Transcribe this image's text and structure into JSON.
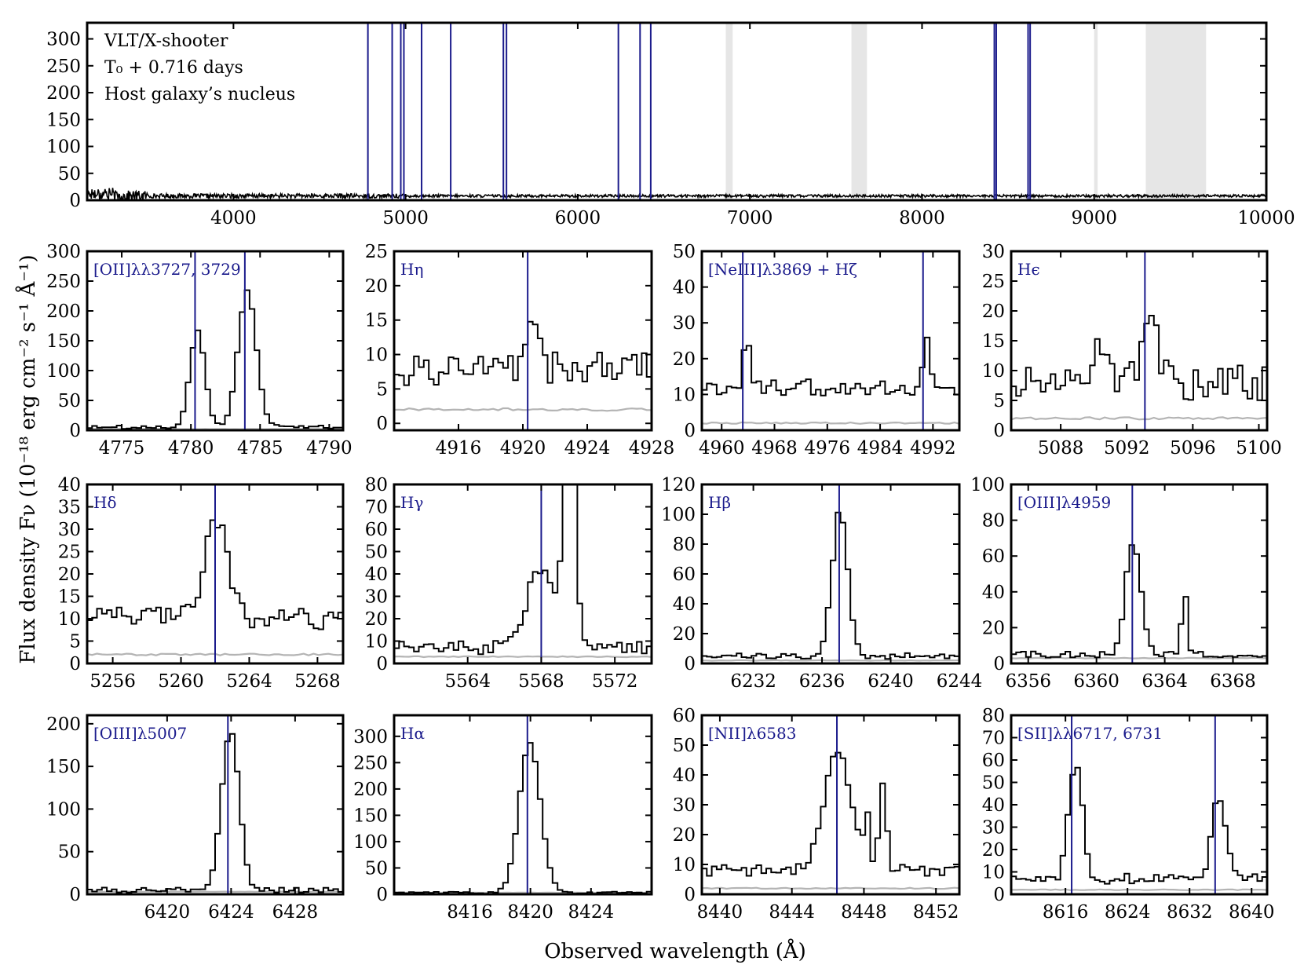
{
  "figure": {
    "ylabel": "Flux density Fν (10⁻¹⁸ erg cm⁻² s⁻¹ Å⁻¹)",
    "xlabel": "Observed wavelength (Å)"
  },
  "colors": {
    "spectrum": "#000000",
    "error": "#b4b4b4",
    "line_marker": "#1b1b8c",
    "telluric": "#e6e6e6",
    "label": "#1b1b8c"
  },
  "chart_data": [
    {
      "type": "line",
      "panel": "overview",
      "annotations": [
        "VLT/X-shooter",
        "T₀ + 0.716 days",
        "Host galaxy’s nucleus"
      ],
      "xlim": [
        3150,
        10000
      ],
      "ylim": [
        0,
        330
      ],
      "xticks": [
        4000,
        5000,
        6000,
        7000,
        8000,
        9000,
        10000
      ],
      "yticks": [
        0,
        50,
        100,
        150,
        200,
        250,
        300
      ],
      "continuum_level": 8,
      "line_markers": [
        4781,
        4922,
        4972,
        4990,
        5093,
        5262,
        5568,
        5586,
        6236,
        6362,
        6424,
        8420,
        8431,
        8616,
        8628
      ],
      "telluric_bands": [
        [
          6860,
          6900
        ],
        [
          7590,
          7680
        ],
        [
          9000,
          9020
        ],
        [
          9300,
          9650
        ]
      ]
    },
    {
      "type": "line",
      "title": "[OII]λλ3727, 3729",
      "xlim": [
        4772.5,
        4791
      ],
      "ylim": [
        0,
        300
      ],
      "xticks": [
        4775,
        4780,
        4785,
        4790
      ],
      "yticks": [
        0,
        50,
        100,
        150,
        200,
        250,
        300
      ],
      "markers": [
        4780.3,
        4783.9
      ],
      "components": [
        [
          4780.3,
          160,
          0.55
        ],
        [
          4783.9,
          230,
          0.65
        ]
      ],
      "continuum": 5,
      "noise": 3,
      "errlevel": 2
    },
    {
      "type": "line",
      "title": "Hη",
      "xlim": [
        4912,
        4928
      ],
      "ylim": [
        -1,
        25
      ],
      "xticks": [
        4916,
        4920,
        4924,
        4928
      ],
      "yticks": [
        0,
        5,
        10,
        15,
        20,
        25
      ],
      "markers": [
        4920.3
      ],
      "components": [
        [
          4920.5,
          9,
          0.35
        ]
      ],
      "continuum": 8,
      "noise": 2.5,
      "errlevel": 2
    },
    {
      "type": "line",
      "title": "[NeIII]λ3869 + Hζ",
      "xlim": [
        4957,
        4996
      ],
      "ylim": [
        0,
        50
      ],
      "xticks": [
        4960,
        4968,
        4976,
        4984,
        4992
      ],
      "yticks": [
        0,
        10,
        20,
        30,
        40,
        50
      ],
      "markers": [
        4963.2,
        4990.5
      ],
      "components": [
        [
          4963.5,
          14,
          0.5
        ],
        [
          4990.5,
          13,
          0.5
        ],
        [
          4980,
          30,
          0.12
        ]
      ],
      "continuum": 12,
      "noise": 2.5,
      "errlevel": 2
    },
    {
      "type": "line",
      "title": "Hϵ",
      "xlim": [
        5085,
        5100.5
      ],
      "ylim": [
        0,
        30
      ],
      "xticks": [
        5088,
        5092,
        5096,
        5100
      ],
      "yticks": [
        0,
        5,
        10,
        15,
        20,
        25,
        30
      ],
      "markers": [
        5093.1
      ],
      "components": [
        [
          5093.2,
          13,
          0.45
        ],
        [
          5090.2,
          5,
          0.4
        ]
      ],
      "continuum": 8,
      "noise": 3,
      "errlevel": 2
    },
    {
      "type": "line",
      "title": "Hδ",
      "xlim": [
        5254.5,
        5269.5
      ],
      "ylim": [
        0,
        40
      ],
      "xticks": [
        5256,
        5260,
        5264,
        5268
      ],
      "yticks": [
        0,
        5,
        10,
        15,
        20,
        25,
        30,
        35,
        40
      ],
      "markers": [
        5262
      ],
      "components": [
        [
          5261.9,
          22,
          0.65
        ]
      ],
      "continuum": 10,
      "noise": 2.5,
      "errlevel": 2
    },
    {
      "type": "line",
      "title": "Hγ",
      "xlim": [
        5560,
        5574
      ],
      "ylim": [
        0,
        80
      ],
      "xticks": [
        5564,
        5568,
        5572
      ],
      "yticks": [
        0,
        10,
        20,
        30,
        40,
        50,
        60,
        70,
        80
      ],
      "markers": [
        5568
      ],
      "components": [
        [
          5567.8,
          36,
          0.7
        ],
        [
          5569.4,
          120,
          0.3
        ]
      ],
      "continuum": 7,
      "noise": 3,
      "errlevel": 3
    },
    {
      "type": "line",
      "title": "Hβ",
      "xlim": [
        6229,
        6244
      ],
      "ylim": [
        0,
        120
      ],
      "xticks": [
        6232,
        6236,
        6240,
        6244
      ],
      "yticks": [
        0,
        20,
        40,
        60,
        80,
        100,
        120
      ],
      "markers": [
        6237
      ],
      "components": [
        [
          6236.9,
          98,
          0.45
        ]
      ],
      "continuum": 5,
      "noise": 2,
      "errlevel": 2
    },
    {
      "type": "line",
      "title": "[OIII]λ4959",
      "xlim": [
        6355,
        6370
      ],
      "ylim": [
        0,
        100
      ],
      "xticks": [
        6356,
        6360,
        6364,
        6368
      ],
      "yticks": [
        0,
        20,
        40,
        60,
        80,
        100
      ],
      "markers": [
        6362.1
      ],
      "components": [
        [
          6362,
          62,
          0.45
        ],
        [
          6365,
          38,
          0.15
        ]
      ],
      "continuum": 5,
      "noise": 2,
      "errlevel": 3
    },
    {
      "type": "line",
      "title": "[OIII]λ5007",
      "xlim": [
        6415,
        6431
      ],
      "ylim": [
        0,
        210
      ],
      "xticks": [
        6420,
        6424,
        6428
      ],
      "yticks": [
        0,
        50,
        100,
        150,
        200
      ],
      "markers": [
        6423.8
      ],
      "components": [
        [
          6423.8,
          185,
          0.55
        ]
      ],
      "continuum": 5,
      "noise": 3,
      "errlevel": 3
    },
    {
      "type": "line",
      "title": "Hα",
      "xlim": [
        8411,
        8428
      ],
      "ylim": [
        0,
        340
      ],
      "xticks": [
        8416,
        8420,
        8424
      ],
      "yticks": [
        0,
        50,
        100,
        150,
        200,
        250,
        300
      ],
      "markers": [
        8419.8
      ],
      "components": [
        [
          8419.8,
          285,
          0.7
        ]
      ],
      "continuum": 3,
      "noise": 2,
      "errlevel": 3
    },
    {
      "type": "line",
      "title": "[NII]λ6583",
      "xlim": [
        8439,
        8453.3
      ],
      "ylim": [
        0,
        60
      ],
      "xticks": [
        8440,
        8444,
        8448,
        8452
      ],
      "yticks": [
        0,
        10,
        20,
        30,
        40,
        50,
        60
      ],
      "markers": [
        8446.5
      ],
      "components": [
        [
          8446.4,
          40,
          0.75
        ],
        [
          8448,
          22,
          0.12
        ],
        [
          8448.9,
          30,
          0.2
        ]
      ],
      "continuum": 8,
      "noise": 2,
      "errlevel": 2
    },
    {
      "type": "line",
      "title": "[SII]λλ6717, 6731",
      "xlim": [
        8609,
        8642
      ],
      "ylim": [
        0,
        80
      ],
      "xticks": [
        8616,
        8624,
        8632,
        8640
      ],
      "yticks": [
        0,
        10,
        20,
        30,
        40,
        50,
        60,
        70,
        80
      ],
      "markers": [
        8616.8,
        8635.3
      ],
      "components": [
        [
          8617,
          50,
          0.9
        ],
        [
          8635.5,
          36,
          0.9
        ]
      ],
      "continuum": 7,
      "noise": 2.5,
      "errlevel": 2
    }
  ]
}
